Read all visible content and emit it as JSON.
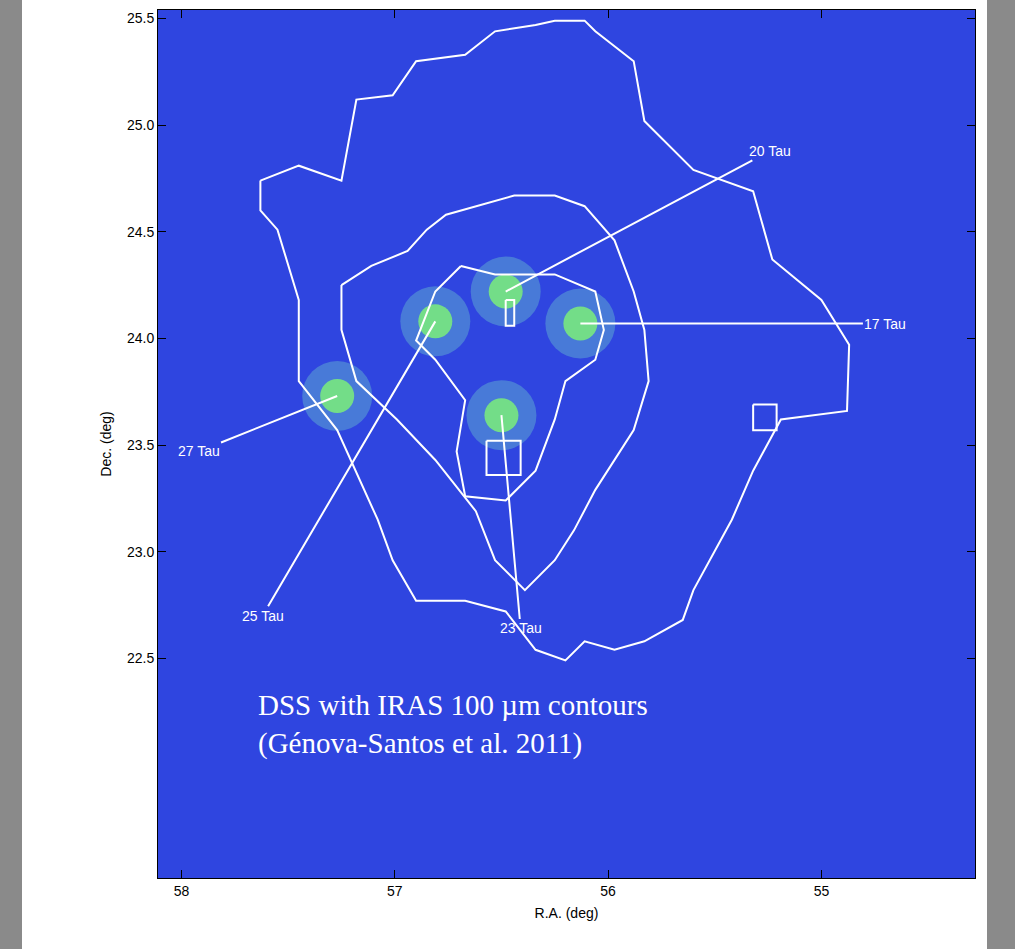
{
  "chart_data": {
    "type": "line",
    "x_label": "R.A. (deg)",
    "y_label": "Dec. (deg)",
    "xlim": [
      58.11,
      54.28
    ],
    "ylim": [
      21.47,
      25.54
    ],
    "xticks": [
      58,
      57,
      56,
      55
    ],
    "yticks": [
      22.5,
      23.0,
      23.5,
      24.0,
      24.5,
      25.0,
      25.5
    ],
    "grid": false,
    "color": "#ffffff",
    "contours": [
      [
        [
          57.63,
          24.74
        ],
        [
          57.45,
          24.81
        ],
        [
          57.25,
          24.74
        ],
        [
          57.18,
          25.12
        ],
        [
          57.01,
          25.14
        ],
        [
          56.9,
          25.3
        ],
        [
          56.67,
          25.33
        ],
        [
          56.53,
          25.44
        ],
        [
          56.34,
          25.47
        ],
        [
          56.25,
          25.49
        ],
        [
          56.11,
          25.49
        ],
        [
          56.06,
          25.44
        ],
        [
          55.88,
          25.3
        ],
        [
          55.83,
          25.02
        ],
        [
          55.6,
          24.79
        ],
        [
          55.32,
          24.69
        ],
        [
          55.23,
          24.37
        ],
        [
          55.0,
          24.18
        ],
        [
          54.87,
          23.97
        ],
        [
          54.88,
          23.66
        ],
        [
          55.19,
          23.62
        ],
        [
          55.32,
          23.38
        ],
        [
          55.42,
          23.15
        ],
        [
          55.6,
          22.82
        ],
        [
          55.65,
          22.68
        ],
        [
          55.83,
          22.58
        ],
        [
          55.97,
          22.54
        ],
        [
          56.11,
          22.58
        ],
        [
          56.2,
          22.49
        ],
        [
          56.34,
          22.54
        ],
        [
          56.48,
          22.72
        ],
        [
          56.67,
          22.77
        ],
        [
          56.9,
          22.77
        ],
        [
          57.01,
          22.96
        ],
        [
          57.08,
          23.15
        ],
        [
          57.27,
          23.57
        ],
        [
          57.45,
          23.8
        ],
        [
          57.45,
          24.18
        ],
        [
          57.55,
          24.51
        ],
        [
          57.63,
          24.6
        ],
        [
          57.63,
          24.74
        ]
      ],
      [
        [
          57.25,
          24.25
        ],
        [
          57.11,
          24.34
        ],
        [
          56.94,
          24.41
        ],
        [
          56.85,
          24.51
        ],
        [
          56.76,
          24.58
        ],
        [
          56.62,
          24.62
        ],
        [
          56.44,
          24.67
        ],
        [
          56.25,
          24.67
        ],
        [
          56.11,
          24.62
        ],
        [
          55.97,
          24.46
        ],
        [
          55.88,
          24.22
        ],
        [
          55.83,
          24.04
        ],
        [
          55.81,
          23.8
        ],
        [
          55.88,
          23.57
        ],
        [
          55.97,
          23.43
        ],
        [
          56.06,
          23.29
        ],
        [
          56.16,
          23.1
        ],
        [
          56.25,
          22.96
        ],
        [
          56.39,
          22.82
        ],
        [
          56.53,
          22.96
        ],
        [
          56.62,
          23.19
        ],
        [
          56.81,
          23.43
        ],
        [
          56.99,
          23.62
        ],
        [
          57.18,
          23.8
        ],
        [
          57.25,
          24.04
        ],
        [
          57.25,
          24.25
        ]
      ],
      [
        [
          56.69,
          24.34
        ],
        [
          56.53,
          24.3
        ],
        [
          56.25,
          24.3
        ],
        [
          56.06,
          24.22
        ],
        [
          56.02,
          24.04
        ],
        [
          56.06,
          23.9
        ],
        [
          56.2,
          23.8
        ],
        [
          56.25,
          23.62
        ],
        [
          56.34,
          23.38
        ],
        [
          56.48,
          23.24
        ],
        [
          56.67,
          23.26
        ],
        [
          56.71,
          23.47
        ],
        [
          56.67,
          23.71
        ],
        [
          56.81,
          23.9
        ],
        [
          56.9,
          23.99
        ],
        [
          56.81,
          24.22
        ],
        [
          56.69,
          24.34
        ]
      ],
      [
        [
          56.57,
          23.52
        ],
        [
          56.41,
          23.52
        ],
        [
          56.41,
          23.36
        ],
        [
          56.57,
          23.36
        ],
        [
          56.57,
          23.52
        ]
      ],
      [
        [
          56.48,
          24.18
        ],
        [
          56.44,
          24.18
        ],
        [
          56.44,
          24.06
        ],
        [
          56.48,
          24.06
        ],
        [
          56.48,
          24.18
        ]
      ],
      [
        [
          55.32,
          23.69
        ],
        [
          55.21,
          23.69
        ],
        [
          55.21,
          23.57
        ],
        [
          55.32,
          23.57
        ],
        [
          55.32,
          23.69
        ]
      ]
    ],
    "annotations": [
      {
        "text": "20 Tau",
        "x": 56.48,
        "y": 24.22,
        "ax": 55.24,
        "ay": 24.88
      },
      {
        "text": "17 Tau",
        "x": 56.13,
        "y": 24.07,
        "ax": 54.7,
        "ay": 24.07
      },
      {
        "text": "27 Tau",
        "x": 57.27,
        "y": 23.73,
        "ax": 57.92,
        "ay": 23.47
      },
      {
        "text": "25 Tau",
        "x": 56.81,
        "y": 24.08,
        "ax": 57.62,
        "ay": 22.7
      },
      {
        "text": "23 Tau",
        "x": 56.5,
        "y": 23.64,
        "ax": 56.41,
        "ay": 22.64
      }
    ],
    "caption": {
      "lines": [
        "DSS with IRAS 100 µm contours",
        "(Génova-Santos et al. 2011)"
      ],
      "x": 57.65,
      "y": 22.19
    }
  }
}
